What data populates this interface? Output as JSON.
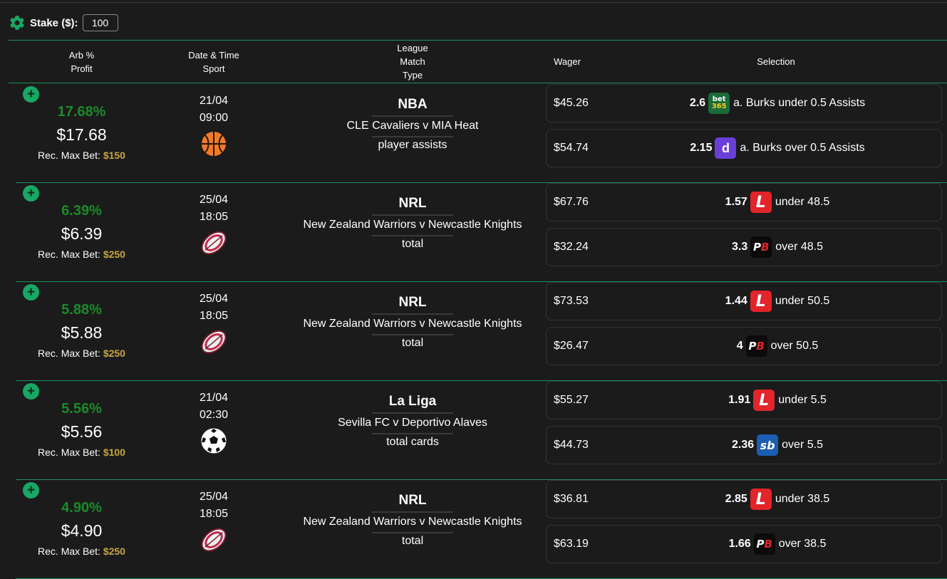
{
  "toolbar": {
    "stake_label": "Stake ($):",
    "stake_value": "100",
    "settings_icon": "gear-icon"
  },
  "header": {
    "col1": [
      "Arb %",
      "Profit"
    ],
    "col2": [
      "Date & Time",
      "Sport"
    ],
    "col3": [
      "League",
      "Match",
      "Type"
    ],
    "col4": "Wager",
    "col5": "Selection"
  },
  "colors": {
    "accent": "#18a864",
    "percent": "#1b8a2a",
    "maxbet": "#c9a63c",
    "divider": "#1f8f5c"
  },
  "rows": [
    {
      "pct": "17.68%",
      "profit": "$17.68",
      "maxbet_label": "Rec. Max Bet:",
      "maxbet": "$150",
      "date": "21/04",
      "time": "09:00",
      "sport_icon": "basketball-icon",
      "league": "NBA",
      "match": "CLE Cavaliers v MIA Heat",
      "type": "player assists",
      "bets": [
        {
          "wager": "$45.26",
          "odds": "2.6",
          "bookie": "bet365",
          "selection": "a. Burks under 0.5 Assists"
        },
        {
          "wager": "$54.74",
          "odds": "2.15",
          "bookie": "dabble",
          "selection": "a. Burks over 0.5 Assists"
        }
      ]
    },
    {
      "pct": "6.39%",
      "profit": "$6.39",
      "maxbet_label": "Rec. Max Bet:",
      "maxbet": "$250",
      "date": "25/04",
      "time": "18:05",
      "sport_icon": "rugby-ball-icon",
      "league": "NRL",
      "match": "New Zealand Warriors v Newcastle Knights",
      "type": "total",
      "bets": [
        {
          "wager": "$67.76",
          "odds": "1.57",
          "bookie": "ladbrokes",
          "selection": "under 48.5"
        },
        {
          "wager": "$32.24",
          "odds": "3.3",
          "bookie": "pointsbet",
          "selection": "over 48.5"
        }
      ]
    },
    {
      "pct": "5.88%",
      "profit": "$5.88",
      "maxbet_label": "Rec. Max Bet:",
      "maxbet": "$250",
      "date": "25/04",
      "time": "18:05",
      "sport_icon": "rugby-ball-icon",
      "league": "NRL",
      "match": "New Zealand Warriors v Newcastle Knights",
      "type": "total",
      "bets": [
        {
          "wager": "$73.53",
          "odds": "1.44",
          "bookie": "ladbrokes",
          "selection": "under 50.5"
        },
        {
          "wager": "$26.47",
          "odds": "4",
          "bookie": "pointsbet",
          "selection": "over 50.5"
        }
      ]
    },
    {
      "pct": "5.56%",
      "profit": "$5.56",
      "maxbet_label": "Rec. Max Bet:",
      "maxbet": "$100",
      "date": "21/04",
      "time": "02:30",
      "sport_icon": "soccer-ball-icon",
      "league": "La Liga",
      "match": "Sevilla FC v Deportivo Alaves",
      "type": "total cards",
      "bets": [
        {
          "wager": "$55.27",
          "odds": "1.91",
          "bookie": "ladbrokes",
          "selection": "under 5.5"
        },
        {
          "wager": "$44.73",
          "odds": "2.36",
          "bookie": "sportsbet",
          "selection": "over 5.5"
        }
      ]
    },
    {
      "pct": "4.90%",
      "profit": "$4.90",
      "maxbet_label": "Rec. Max Bet:",
      "maxbet": "$250",
      "date": "25/04",
      "time": "18:05",
      "sport_icon": "rugby-ball-icon",
      "league": "NRL",
      "match": "New Zealand Warriors v Newcastle Knights",
      "type": "total",
      "bets": [
        {
          "wager": "$36.81",
          "odds": "2.85",
          "bookie": "ladbrokes",
          "selection": "under 38.5"
        },
        {
          "wager": "$63.19",
          "odds": "1.66",
          "bookie": "pointsbet",
          "selection": "over 38.5"
        }
      ]
    }
  ]
}
